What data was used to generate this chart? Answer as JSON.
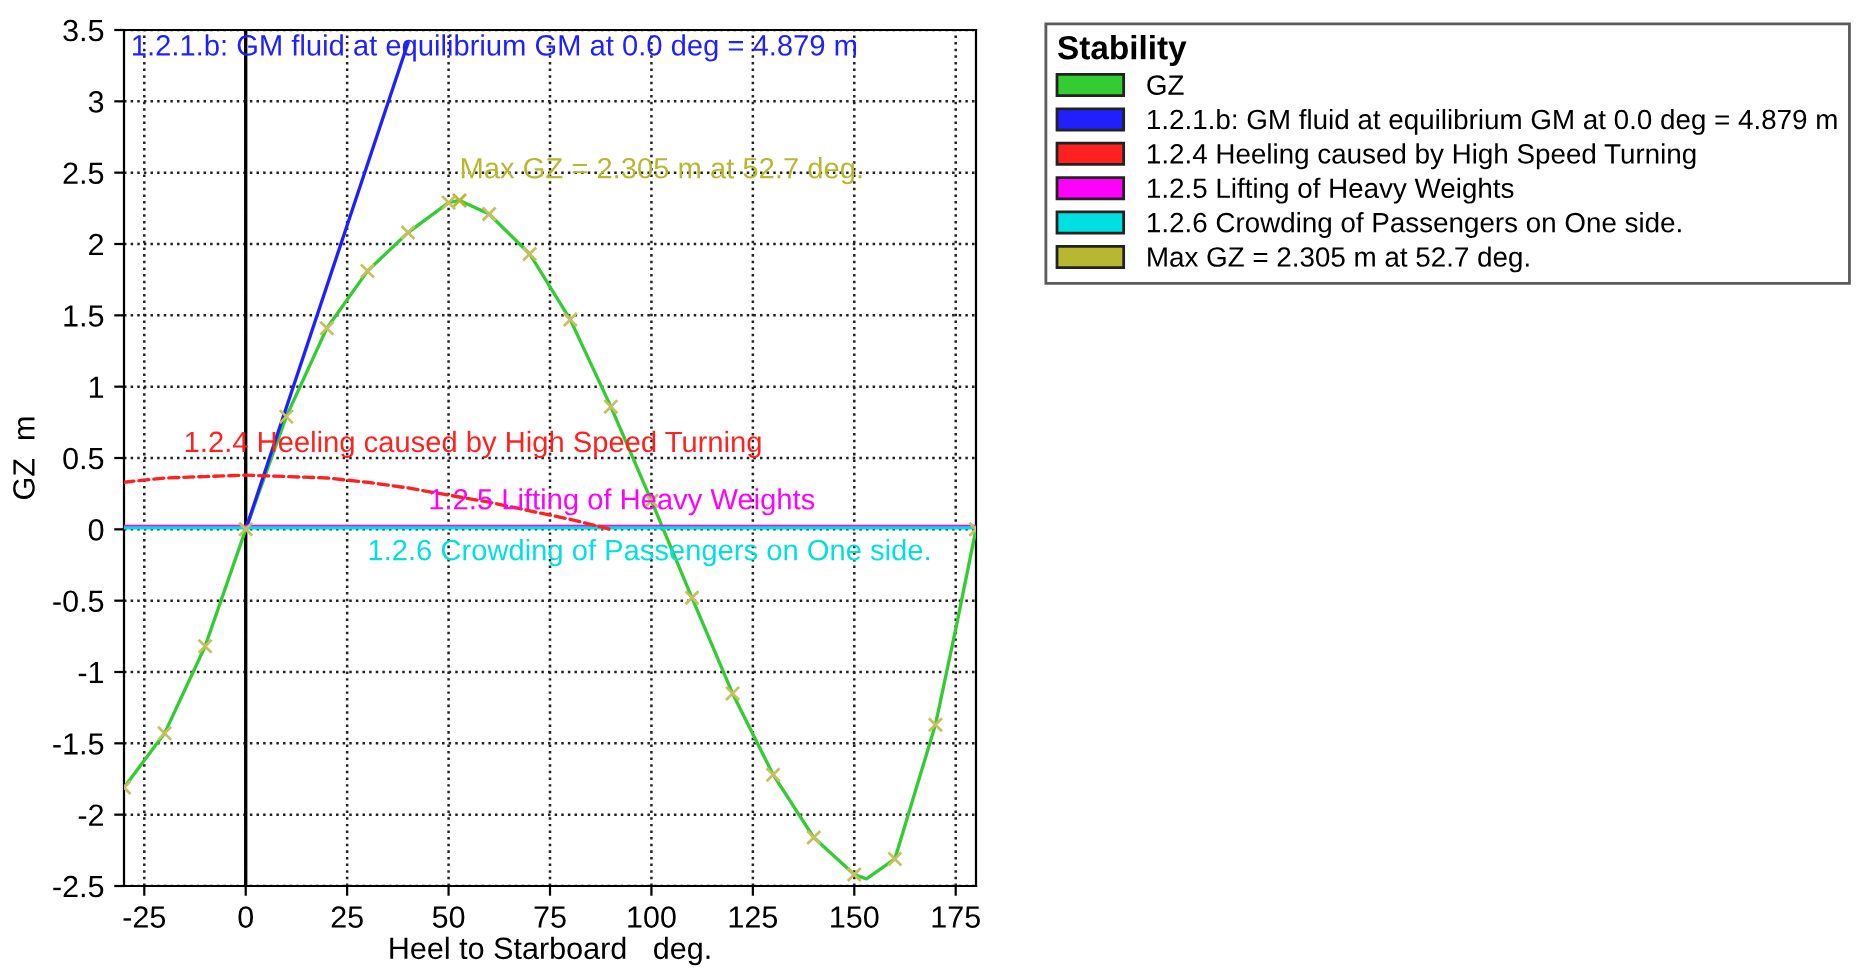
{
  "chart_data": {
    "type": "line",
    "xlabel": "Heel to Starboard   deg.",
    "ylabel": "GZ  m",
    "legend_title": "Stability",
    "legend": "top right",
    "grid": true,
    "xlim": [
      -30,
      180
    ],
    "xticks": [
      -25,
      0,
      25,
      50,
      75,
      100,
      125,
      150,
      175
    ],
    "ylim": [
      -2.5,
      3.5
    ],
    "yticks": [
      -2.5,
      -2,
      -1.5,
      -1,
      -0.5,
      0,
      0.5,
      1,
      1.5,
      2,
      2.5,
      3,
      3.5
    ],
    "ref_lines": [
      {
        "axis": "x",
        "value": 0,
        "color": "#000000"
      }
    ],
    "series": [
      {
        "name": "GZ",
        "color": "#33cc33",
        "x": [
          -30,
          -20,
          -10,
          0,
          10,
          20,
          30,
          40,
          50,
          52.7,
          60,
          70,
          80,
          90,
          100,
          110,
          120,
          130,
          140,
          150,
          153,
          160,
          170,
          175,
          180
        ],
        "values": [
          -1.81,
          -1.43,
          -0.82,
          0,
          0.79,
          1.41,
          1.81,
          2.08,
          2.29,
          2.305,
          2.21,
          1.93,
          1.47,
          0.86,
          0.2,
          -0.48,
          -1.15,
          -1.72,
          -2.16,
          -2.42,
          -2.45,
          -2.31,
          -1.37,
          -0.7,
          0
        ]
      },
      {
        "name": "1.2.1.b: GM fluid at equilibrium GM at 0.0 deg = 4.879 m",
        "color": "#2020ff",
        "x": [
          0,
          40
        ],
        "values": [
          0,
          3.41
        ]
      },
      {
        "name": "1.2.4 Heeling caused by High Speed Turning",
        "color": "#ff2020",
        "line_style": "dashed",
        "x": [
          -30,
          -20,
          -10,
          0,
          10,
          20,
          30,
          40,
          50,
          60,
          70,
          80,
          90
        ],
        "values": [
          0.33,
          0.36,
          0.37,
          0.38,
          0.37,
          0.36,
          0.33,
          0.29,
          0.24,
          0.19,
          0.13,
          0.07,
          0
        ]
      },
      {
        "name": "1.2.5 Lifting of Heavy Weights",
        "color": "#ff00ff",
        "x": [
          -30,
          180
        ],
        "values": [
          0.02,
          0.02
        ]
      },
      {
        "name": "1.2.6 Crowding of Passengers on One side.",
        "color": "#00e0e0",
        "x": [
          -30,
          180
        ],
        "values": [
          0.01,
          0.01
        ]
      },
      {
        "name": "Max GZ = 2.305 m at 52.7 deg.",
        "color": "#b8b830",
        "type": "scatter",
        "marker": "cross",
        "x": [
          52.7
        ],
        "values": [
          2.305
        ]
      },
      {
        "color": "#c8c060",
        "type": "scatter",
        "marker": "cross",
        "x": [
          -30,
          -20,
          -10,
          0,
          10,
          20,
          30,
          40,
          50,
          60,
          70,
          80,
          90,
          100,
          110,
          120,
          130,
          140,
          150,
          160,
          170,
          180
        ],
        "values": [
          -1.81,
          -1.43,
          -0.82,
          0,
          0.79,
          1.41,
          1.81,
          2.08,
          2.29,
          2.21,
          1.93,
          1.47,
          0.86,
          0.2,
          -0.48,
          -1.15,
          -1.72,
          -2.16,
          -2.42,
          -2.31,
          -1.37,
          0
        ]
      }
    ],
    "annotations": [
      "1.2.1.b: GM fluid at equilibrium GM at 0.0 deg = 4.879 m",
      {
        "text": "Max GZ = 2.305 m at 52.7 deg.",
        "x": 52.7,
        "y": 2.36
      },
      "1.2.4 Heeling caused by High Speed Turning",
      {
        "text": "1.2.5 Lifting of Heavy Weights",
        "x": 45,
        "y": 0.02
      },
      {
        "text": "1.2.6 Crowding of Passengers on One side.",
        "x": 30,
        "y": 0.01
      }
    ]
  }
}
